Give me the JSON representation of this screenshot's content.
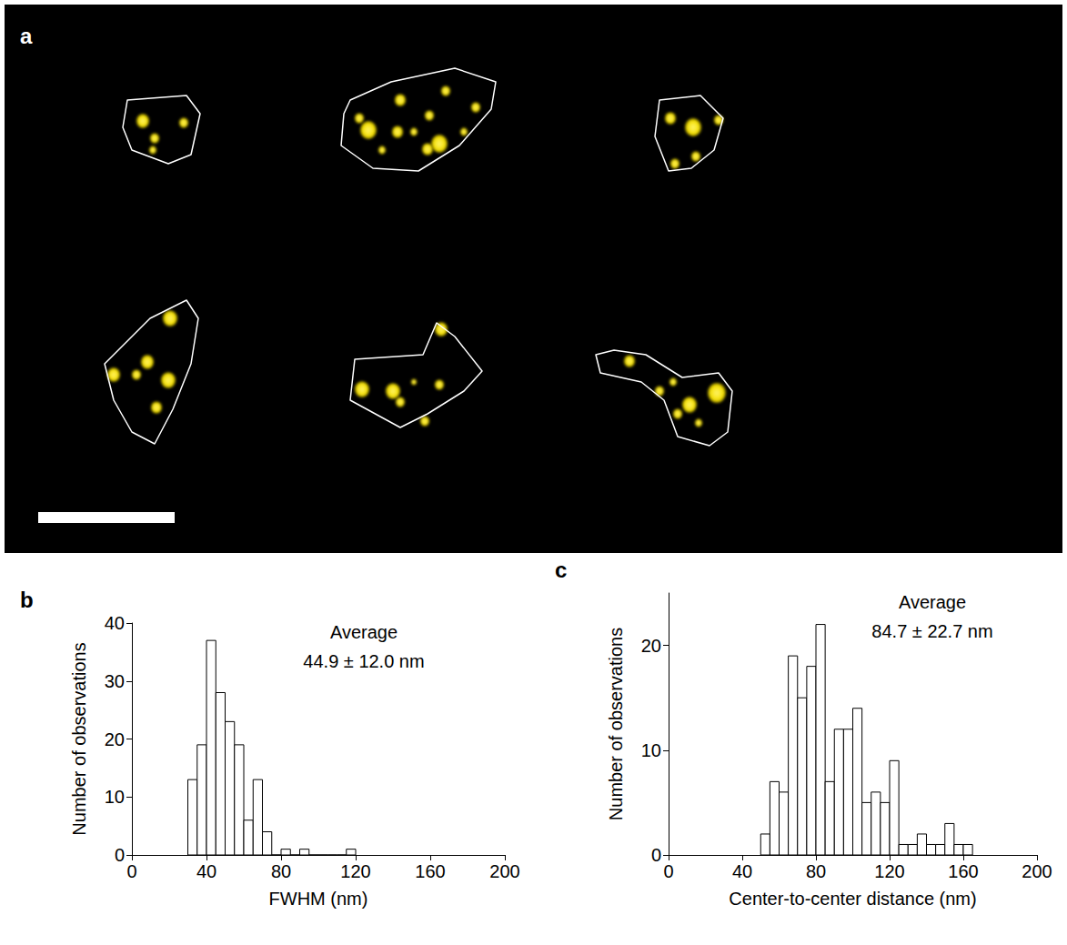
{
  "image_panel": {
    "panel": "a"
  },
  "chart_data": [
    {
      "type": "histogram",
      "panel": "b",
      "bins": [
        30,
        35,
        40,
        45,
        50,
        55,
        60,
        65,
        70,
        75,
        80,
        85,
        90,
        95,
        100,
        105,
        110,
        115,
        120
      ],
      "counts": [
        13,
        19,
        37,
        28,
        23,
        19,
        6,
        13,
        4,
        0,
        1,
        0,
        1,
        0,
        0,
        0,
        0,
        1
      ],
      "color": "#ffffff",
      "xlabel": "FWHM (nm)",
      "ylabel": "Number of observations",
      "annotation": [
        "Average",
        "44.9 ± 12.0 nm"
      ],
      "xlim": [
        0,
        200
      ],
      "xticks": [
        0,
        40,
        80,
        120,
        160,
        200
      ],
      "ylim": [
        0,
        40
      ],
      "yticks": [
        0,
        10,
        20,
        30,
        40
      ],
      "grid": false
    },
    {
      "type": "histogram",
      "panel": "c",
      "bins": [
        50,
        55,
        60,
        65,
        70,
        75,
        80,
        85,
        90,
        95,
        100,
        105,
        110,
        115,
        120,
        125,
        130,
        135,
        140,
        145,
        150,
        155,
        160,
        165
      ],
      "counts": [
        2,
        7,
        6,
        19,
        15,
        18,
        22,
        7,
        12,
        12,
        14,
        5,
        6,
        5,
        9,
        1,
        1,
        2,
        1,
        1,
        3,
        1,
        1
      ],
      "color": "#ffffff",
      "xlabel": "Center-to-center distance (nm)",
      "ylabel": "Number of observations",
      "annotation": [
        "Average",
        "84.7 ± 22.7 nm"
      ],
      "xlim": [
        0,
        200
      ],
      "xticks": [
        0,
        40,
        80,
        120,
        160,
        200
      ],
      "ylim": [
        0,
        25
      ],
      "yticks": [
        0,
        10,
        20
      ],
      "grid": false
    }
  ]
}
